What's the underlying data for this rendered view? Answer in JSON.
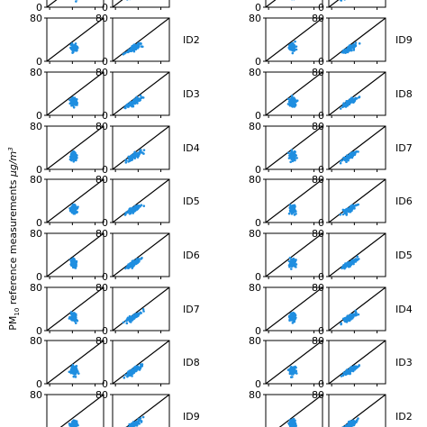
{
  "chart_data": {
    "type": "scatter",
    "ylabel": {
      "prefix": "PM",
      "subscript": "10",
      "text": " reference measurements ",
      "unit_main": "μg/m",
      "unit_sup": "3"
    },
    "ylim": [
      0,
      80
    ],
    "y_ticks": [
      "0",
      "80"
    ],
    "point_color": "#1f8ee0",
    "reference_line": "y = x",
    "panel_columns": [
      "left-a",
      "left-b",
      "right-a",
      "right-b"
    ],
    "left_ids": [
      "ID2",
      "ID3",
      "ID4",
      "ID5",
      "ID6",
      "ID7",
      "ID8",
      "ID9"
    ],
    "right_ids": [
      "ID9",
      "ID8",
      "ID7",
      "ID6",
      "ID5",
      "ID4",
      "ID3",
      "ID2"
    ],
    "cluster_centers": {
      "col_a": {
        "x": 38,
        "y": 25,
        "spread_x": 4,
        "spread_y": 8
      },
      "col_b": {
        "x": 30,
        "y": 22,
        "spread_x": 9,
        "spread_y": 9
      }
    }
  }
}
